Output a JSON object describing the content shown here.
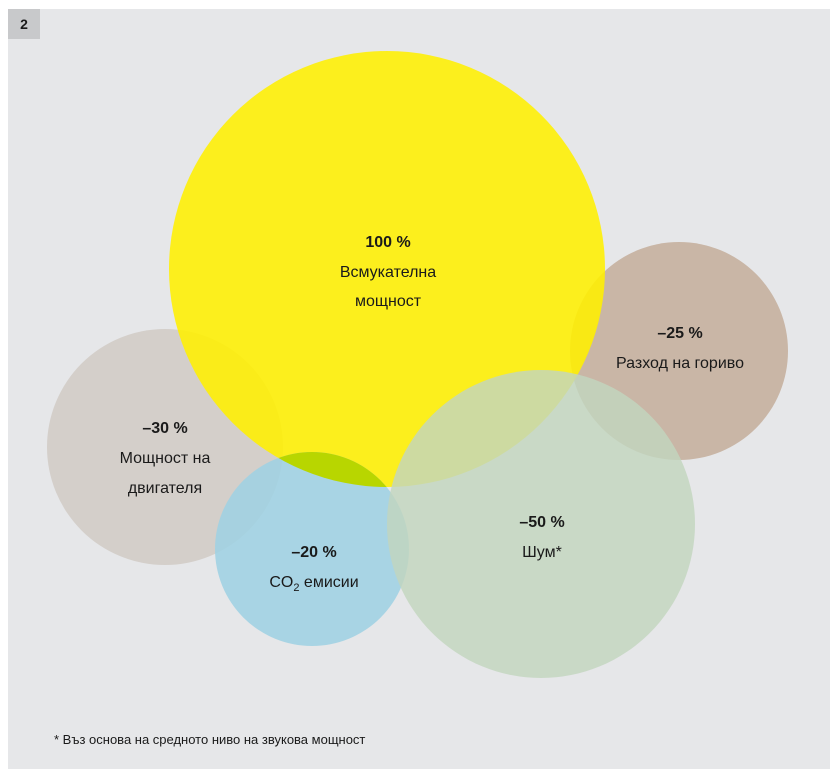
{
  "figure": {
    "number": "2"
  },
  "circles": {
    "intake": {
      "value": "100 %",
      "line1": "Всмукателна",
      "line2": "мощност",
      "color": "#fff000"
    },
    "fuel": {
      "value": "–25 %",
      "line1": "Разход на гориво",
      "color": "#c9b6a6"
    },
    "engine": {
      "value": "–30 %",
      "line1": "Мощност на",
      "line2": "двигателя",
      "color": "#d2ccc6"
    },
    "co2": {
      "value": "–20 %",
      "prefix": "CO",
      "subscript": "2",
      "suffix": " емисии",
      "color": "#9fd1e3"
    },
    "noise": {
      "value": "–50 %",
      "line1": "Шум*",
      "color": "#c2d6be"
    }
  },
  "overlap_color": "#b8d600",
  "footnote": "* Въз основа на средното ниво на звукова мощност"
}
